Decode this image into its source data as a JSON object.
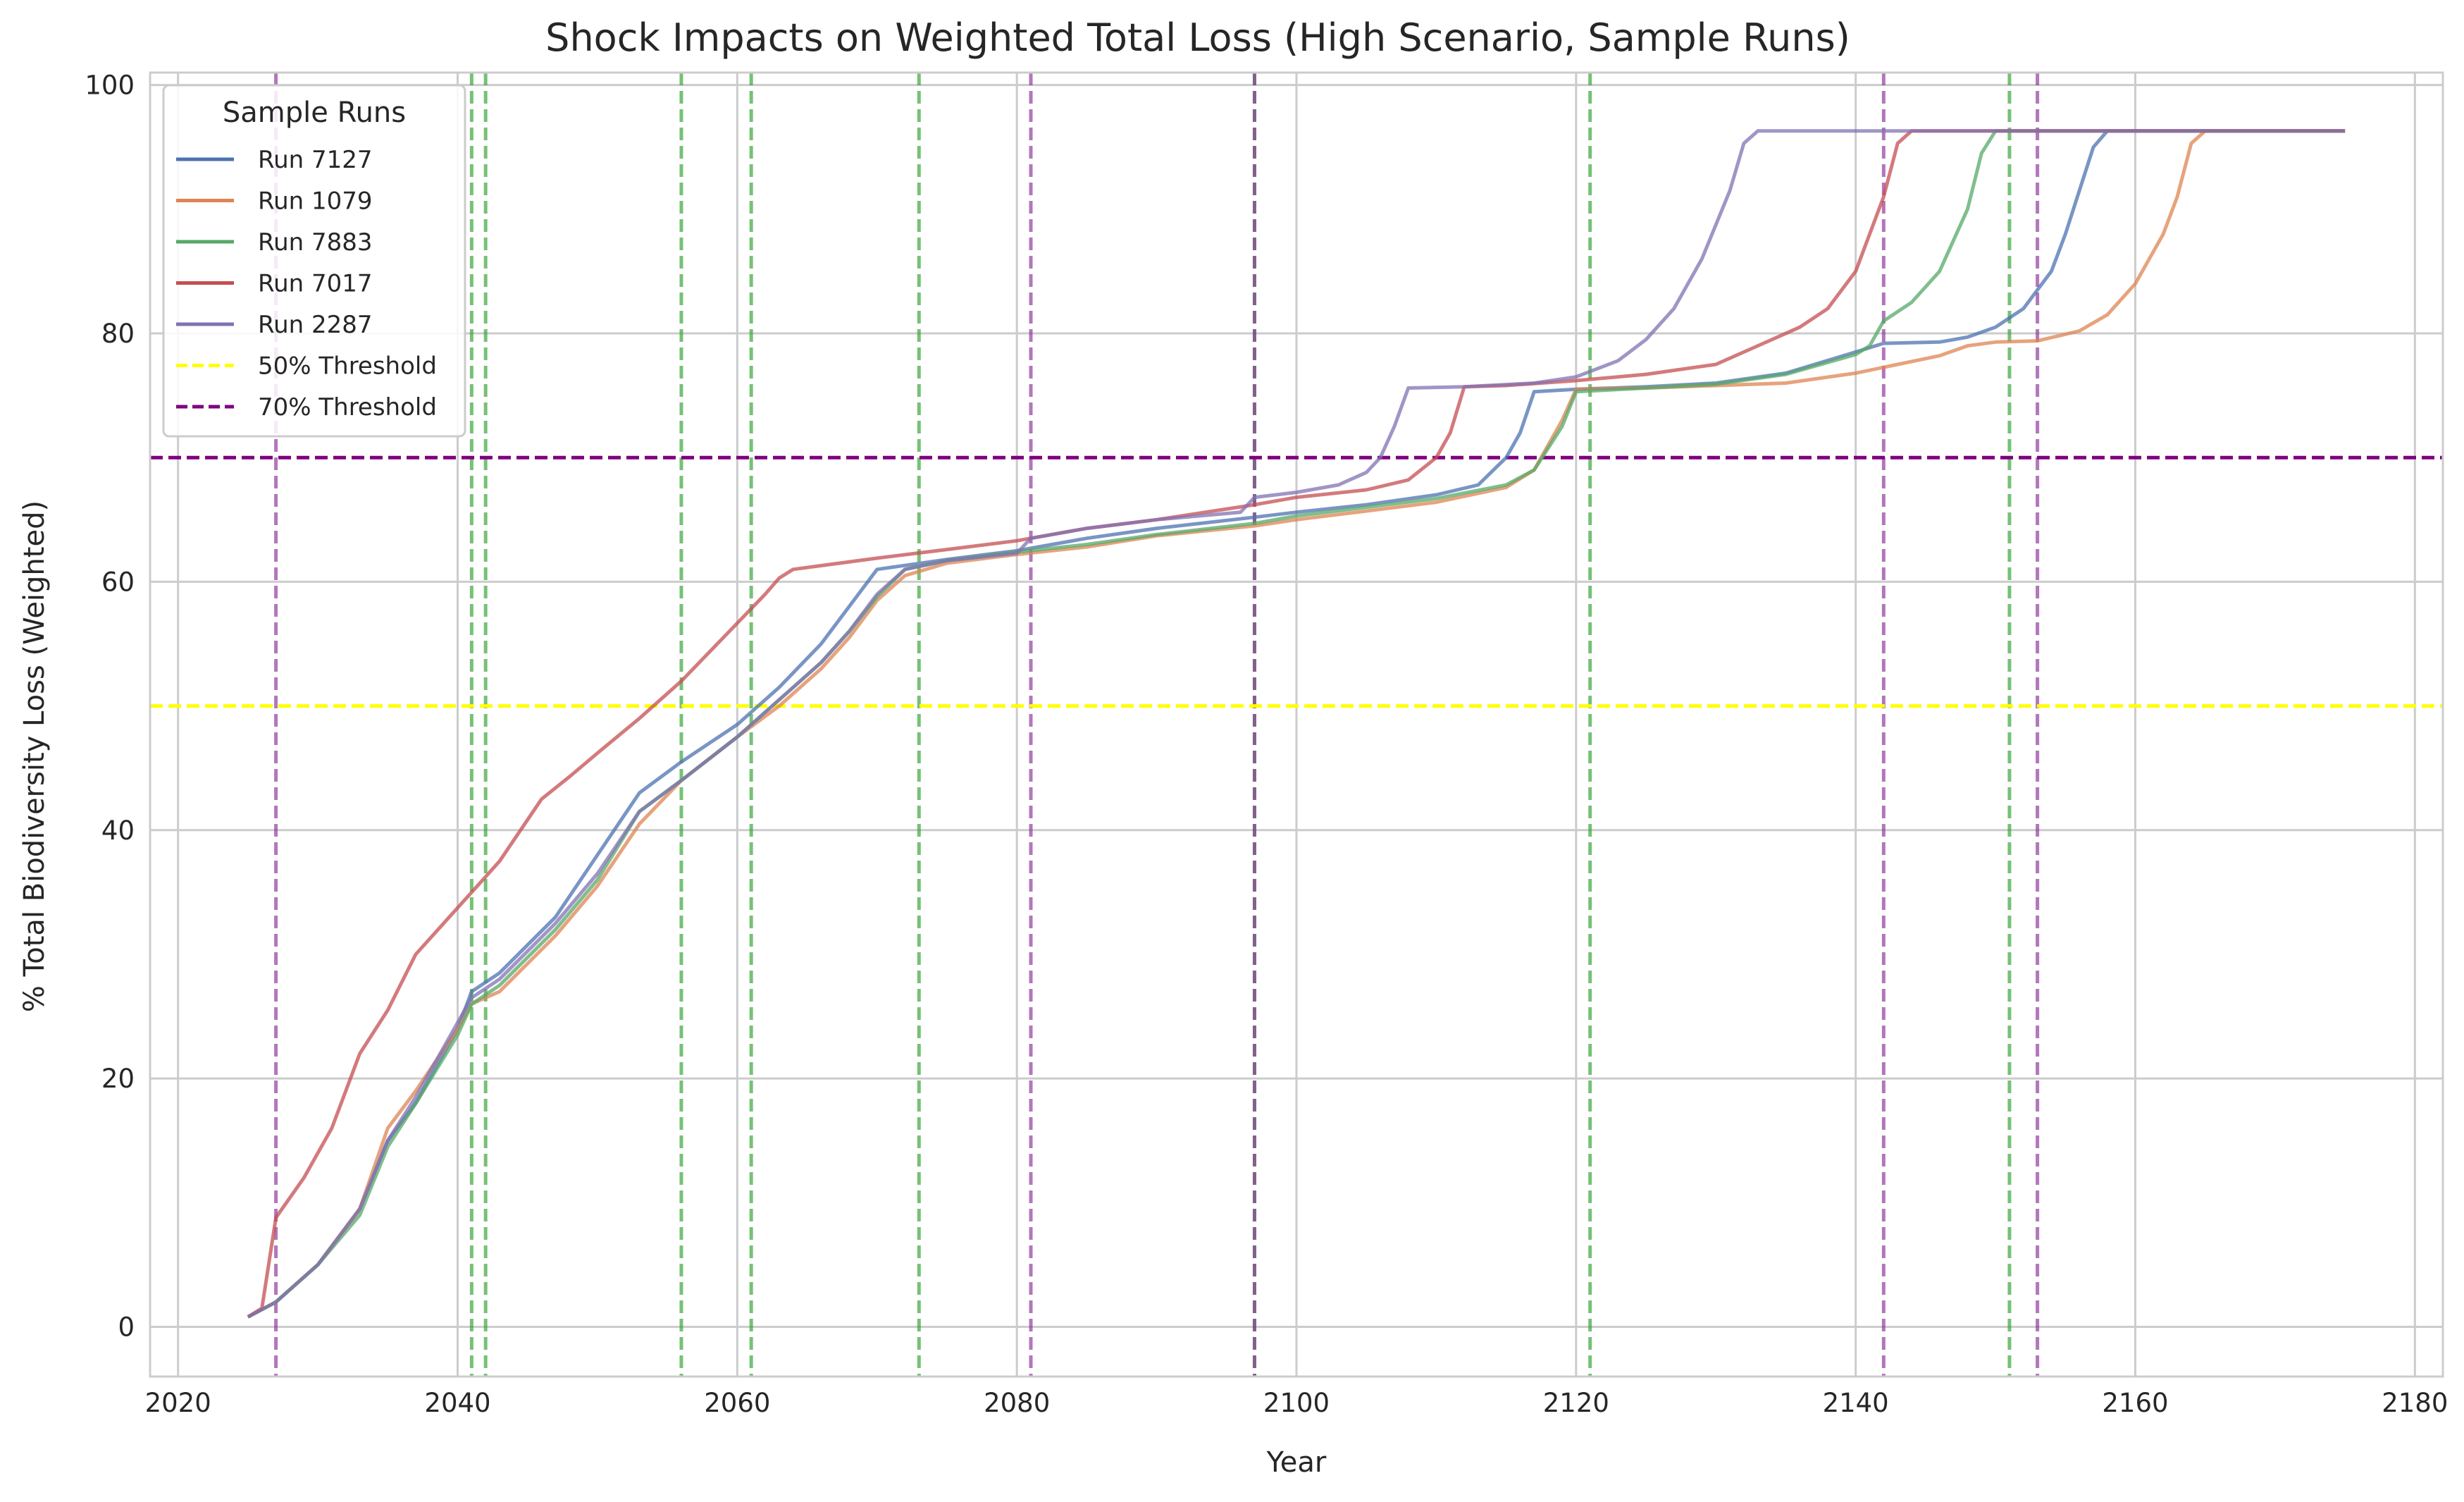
{
  "chart_data": {
    "type": "line",
    "title": "Shock Impacts on Weighted Total Loss (High Scenario, Sample Runs)",
    "xlabel": "Year",
    "ylabel": "% Total Biodiversity Loss (Weighted)",
    "xlim": [
      2018,
      2182
    ],
    "ylim": [
      -4,
      101
    ],
    "xticks": [
      2020,
      2040,
      2060,
      2080,
      2100,
      2120,
      2140,
      2160,
      2180
    ],
    "yticks": [
      0,
      20,
      40,
      60,
      80,
      100
    ],
    "grid": true,
    "legend": {
      "title": "Sample Runs",
      "placement": "top-left"
    },
    "series": [
      {
        "name": "Run 7127",
        "color": "#4c72b0",
        "points": [
          [
            2025,
            0.8
          ],
          [
            2027,
            2
          ],
          [
            2030,
            5
          ],
          [
            2033,
            9.5
          ],
          [
            2035,
            15
          ],
          [
            2037,
            18
          ],
          [
            2040,
            24
          ],
          [
            2041,
            27
          ],
          [
            2043,
            28.5
          ],
          [
            2047,
            33
          ],
          [
            2050,
            38
          ],
          [
            2053,
            43
          ],
          [
            2056,
            45.5
          ],
          [
            2060,
            48.5
          ],
          [
            2063,
            51.5
          ],
          [
            2066,
            55
          ],
          [
            2068,
            58
          ],
          [
            2070,
            61
          ],
          [
            2075,
            61.8
          ],
          [
            2080,
            62.5
          ],
          [
            2085,
            63.5
          ],
          [
            2090,
            64.3
          ],
          [
            2097,
            65.2
          ],
          [
            2100,
            65.6
          ],
          [
            2105,
            66.2
          ],
          [
            2110,
            67
          ],
          [
            2113,
            67.8
          ],
          [
            2115,
            70
          ],
          [
            2116,
            72
          ],
          [
            2117,
            75.3
          ],
          [
            2120,
            75.5
          ],
          [
            2125,
            75.7
          ],
          [
            2130,
            76
          ],
          [
            2135,
            76.8
          ],
          [
            2140,
            78.5
          ],
          [
            2142,
            79.2
          ],
          [
            2146,
            79.3
          ],
          [
            2148,
            79.7
          ],
          [
            2150,
            80.5
          ],
          [
            2152,
            82
          ],
          [
            2154,
            85
          ],
          [
            2155,
            88
          ],
          [
            2157,
            95
          ],
          [
            2158,
            96.3
          ],
          [
            2175,
            96.3
          ]
        ]
      },
      {
        "name": "Run 1079",
        "color": "#dd8452",
        "points": [
          [
            2025,
            0.8
          ],
          [
            2027,
            2
          ],
          [
            2030,
            5
          ],
          [
            2033,
            9.5
          ],
          [
            2035,
            16
          ],
          [
            2037,
            19
          ],
          [
            2040,
            24
          ],
          [
            2041,
            26
          ],
          [
            2043,
            27
          ],
          [
            2047,
            31.5
          ],
          [
            2050,
            35.5
          ],
          [
            2053,
            40.5
          ],
          [
            2056,
            44
          ],
          [
            2060,
            47.5
          ],
          [
            2063,
            50
          ],
          [
            2066,
            53
          ],
          [
            2068,
            55.5
          ],
          [
            2070,
            58.5
          ],
          [
            2072,
            60.5
          ],
          [
            2075,
            61.5
          ],
          [
            2080,
            62.2
          ],
          [
            2085,
            62.8
          ],
          [
            2090,
            63.7
          ],
          [
            2097,
            64.5
          ],
          [
            2100,
            65
          ],
          [
            2105,
            65.7
          ],
          [
            2110,
            66.4
          ],
          [
            2115,
            67.6
          ],
          [
            2117,
            69
          ],
          [
            2119,
            73
          ],
          [
            2120,
            75.5
          ],
          [
            2125,
            75.6
          ],
          [
            2130,
            75.8
          ],
          [
            2135,
            76
          ],
          [
            2140,
            76.8
          ],
          [
            2143,
            77.5
          ],
          [
            2146,
            78.2
          ],
          [
            2148,
            79
          ],
          [
            2150,
            79.3
          ],
          [
            2153,
            79.4
          ],
          [
            2156,
            80.2
          ],
          [
            2158,
            81.5
          ],
          [
            2160,
            84
          ],
          [
            2162,
            88
          ],
          [
            2163,
            91
          ],
          [
            2164,
            95.3
          ],
          [
            2165,
            96.3
          ],
          [
            2175,
            96.3
          ]
        ]
      },
      {
        "name": "Run 7883",
        "color": "#55a868",
        "points": [
          [
            2025,
            0.8
          ],
          [
            2027,
            2
          ],
          [
            2030,
            5
          ],
          [
            2033,
            9
          ],
          [
            2035,
            14.5
          ],
          [
            2037,
            18
          ],
          [
            2040,
            23.5
          ],
          [
            2041,
            26
          ],
          [
            2043,
            27.5
          ],
          [
            2047,
            32
          ],
          [
            2050,
            36
          ],
          [
            2053,
            41.5
          ],
          [
            2056,
            44
          ],
          [
            2060,
            47.5
          ],
          [
            2063,
            50.5
          ],
          [
            2066,
            53.5
          ],
          [
            2068,
            56
          ],
          [
            2070,
            58.8
          ],
          [
            2072,
            61
          ],
          [
            2075,
            61.7
          ],
          [
            2080,
            62.4
          ],
          [
            2085,
            63
          ],
          [
            2090,
            63.8
          ],
          [
            2097,
            64.7
          ],
          [
            2100,
            65.3
          ],
          [
            2105,
            66
          ],
          [
            2110,
            66.7
          ],
          [
            2115,
            67.8
          ],
          [
            2117,
            69
          ],
          [
            2119,
            72.5
          ],
          [
            2120,
            75.3
          ],
          [
            2125,
            75.6
          ],
          [
            2130,
            75.9
          ],
          [
            2135,
            76.7
          ],
          [
            2140,
            78.3
          ],
          [
            2141,
            79
          ],
          [
            2142,
            81
          ],
          [
            2144,
            82.5
          ],
          [
            2146,
            85
          ],
          [
            2148,
            90
          ],
          [
            2149,
            94.5
          ],
          [
            2150,
            96.3
          ],
          [
            2175,
            96.3
          ]
        ]
      },
      {
        "name": "Run 7017",
        "color": "#c44e52",
        "points": [
          [
            2025,
            0.8
          ],
          [
            2026,
            1.5
          ],
          [
            2027,
            8.8
          ],
          [
            2029,
            12
          ],
          [
            2031,
            16
          ],
          [
            2033,
            22
          ],
          [
            2035,
            25.5
          ],
          [
            2037,
            30
          ],
          [
            2039,
            32.5
          ],
          [
            2041,
            35
          ],
          [
            2043,
            37.5
          ],
          [
            2046,
            42.5
          ],
          [
            2048,
            44.3
          ],
          [
            2050,
            46.2
          ],
          [
            2053,
            49
          ],
          [
            2056,
            52
          ],
          [
            2059,
            55.5
          ],
          [
            2062,
            59
          ],
          [
            2063,
            60.3
          ],
          [
            2064,
            61
          ],
          [
            2066,
            61.3
          ],
          [
            2070,
            61.9
          ],
          [
            2075,
            62.6
          ],
          [
            2080,
            63.3
          ],
          [
            2085,
            64.3
          ],
          [
            2090,
            65
          ],
          [
            2097,
            66.2
          ],
          [
            2100,
            66.8
          ],
          [
            2105,
            67.4
          ],
          [
            2108,
            68.2
          ],
          [
            2110,
            70
          ],
          [
            2111,
            72
          ],
          [
            2112,
            75.7
          ],
          [
            2115,
            75.8
          ],
          [
            2120,
            76.2
          ],
          [
            2125,
            76.7
          ],
          [
            2130,
            77.5
          ],
          [
            2133,
            79
          ],
          [
            2136,
            80.5
          ],
          [
            2138,
            82
          ],
          [
            2140,
            85
          ],
          [
            2142,
            91
          ],
          [
            2143,
            95.3
          ],
          [
            2144,
            96.3
          ],
          [
            2175,
            96.3
          ]
        ]
      },
      {
        "name": "Run 2287",
        "color": "#8172b3",
        "points": [
          [
            2025,
            0.8
          ],
          [
            2027,
            2
          ],
          [
            2030,
            5
          ],
          [
            2033,
            9.5
          ],
          [
            2035,
            15
          ],
          [
            2037,
            18.5
          ],
          [
            2040,
            24.5
          ],
          [
            2041,
            26.5
          ],
          [
            2043,
            28
          ],
          [
            2047,
            32.5
          ],
          [
            2050,
            36.5
          ],
          [
            2053,
            41.5
          ],
          [
            2056,
            44
          ],
          [
            2060,
            47.5
          ],
          [
            2063,
            50.5
          ],
          [
            2066,
            53.5
          ],
          [
            2068,
            56
          ],
          [
            2070,
            59
          ],
          [
            2072,
            61
          ],
          [
            2075,
            61.7
          ],
          [
            2080,
            62.3
          ],
          [
            2081,
            63.5
          ],
          [
            2085,
            64.3
          ],
          [
            2090,
            65
          ],
          [
            2096,
            65.6
          ],
          [
            2097,
            66.8
          ],
          [
            2100,
            67.2
          ],
          [
            2103,
            67.8
          ],
          [
            2105,
            68.8
          ],
          [
            2106,
            70
          ],
          [
            2107,
            72.5
          ],
          [
            2108,
            75.6
          ],
          [
            2112,
            75.7
          ],
          [
            2117,
            76
          ],
          [
            2120,
            76.5
          ],
          [
            2123,
            77.8
          ],
          [
            2125,
            79.5
          ],
          [
            2127,
            82
          ],
          [
            2129,
            86
          ],
          [
            2131,
            91.5
          ],
          [
            2132,
            95.3
          ],
          [
            2133,
            96.3
          ],
          [
            2175,
            96.3
          ]
        ]
      }
    ],
    "threshold_lines": [
      {
        "name": "50% Threshold",
        "y": 50,
        "color": "#ffff00"
      },
      {
        "name": "70% Threshold",
        "y": 70,
        "color": "#800080"
      }
    ],
    "shock_lines": [
      {
        "x": 2027,
        "color": "#8b2c98"
      },
      {
        "x": 2041,
        "color": "#2ca02c"
      },
      {
        "x": 2042,
        "color": "#2ca02c"
      },
      {
        "x": 2056,
        "color": "#2ca02c"
      },
      {
        "x": 2061,
        "color": "#2ca02c"
      },
      {
        "x": 2073,
        "color": "#2ca02c"
      },
      {
        "x": 2081,
        "color": "#8b2c98"
      },
      {
        "x": 2097,
        "color": "#2ca02c"
      },
      {
        "x": 2097,
        "color": "#8b2c98"
      },
      {
        "x": 2121,
        "color": "#2ca02c"
      },
      {
        "x": 2142,
        "color": "#8b2c98"
      },
      {
        "x": 2151,
        "color": "#2ca02c"
      },
      {
        "x": 2153,
        "color": "#8b2c98"
      }
    ]
  }
}
